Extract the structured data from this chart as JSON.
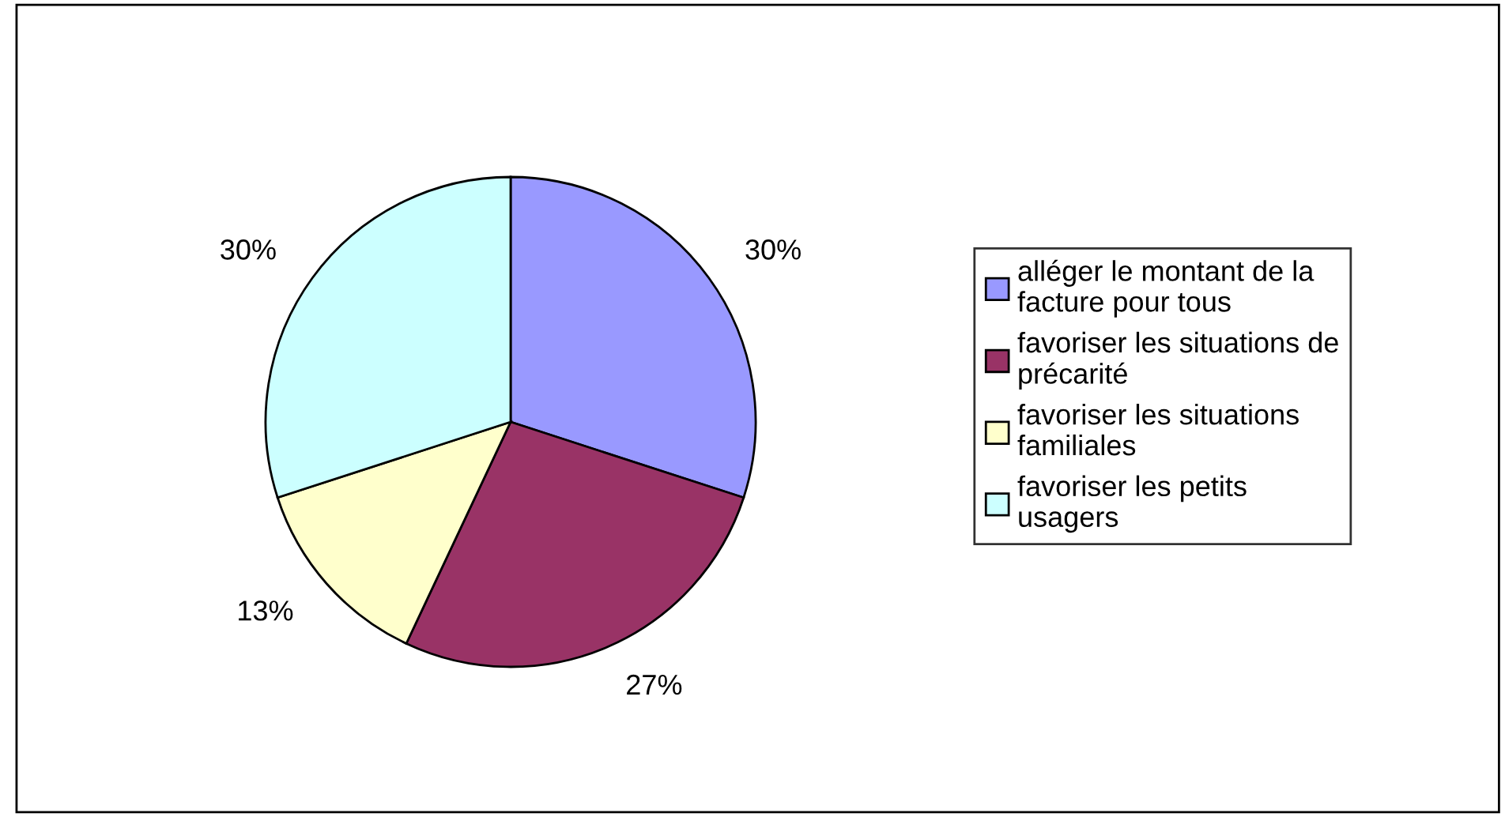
{
  "chart_data": {
    "type": "pie",
    "categories": [
      "alléger le montant de la\nfacture pour tous",
      "favoriser les situations de\nprécarité",
      "favoriser les situations\nfamiliales",
      "favoriser les petits\nusagers"
    ],
    "values": [
      30,
      27,
      13,
      30
    ],
    "colors": [
      "#9999ff",
      "#993366",
      "#ffffcc",
      "#ccffff"
    ],
    "value_labels": [
      "30%",
      "27%",
      "13%",
      "30%"
    ],
    "legend": "right"
  }
}
